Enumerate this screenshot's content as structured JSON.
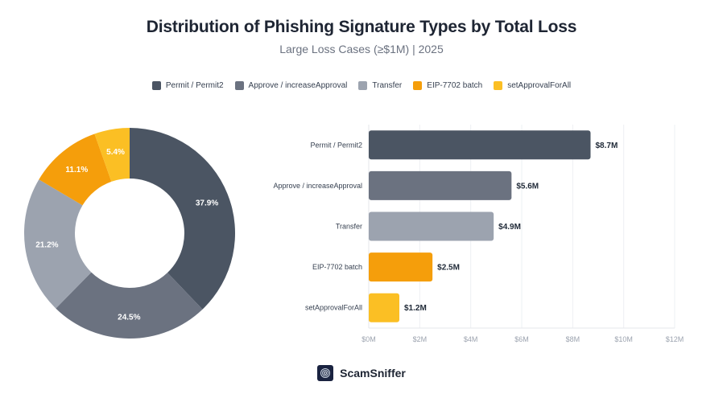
{
  "header": {
    "title": "Distribution of Phishing Signature Types by Total Loss",
    "subtitle": "Large Loss Cases (≥$1M) | 2025"
  },
  "legend": [
    {
      "label": "Permit / Permit2",
      "color": "#4b5563"
    },
    {
      "label": "Approve / increaseApproval",
      "color": "#6b7280"
    },
    {
      "label": "Transfer",
      "color": "#9ca3af"
    },
    {
      "label": "EIP-7702 batch",
      "color": "#f59e0b"
    },
    {
      "label": "setApprovalForAll",
      "color": "#fbbf24"
    }
  ],
  "footer": {
    "brand": "ScamSniffer",
    "logo_icon": "fingerprint-icon"
  },
  "chart_data": [
    {
      "type": "pie",
      "subtype": "donut",
      "title": "Share of Total Loss by Signature Type",
      "categories": [
        "Permit / Permit2",
        "Approve / increaseApproval",
        "Transfer",
        "EIP-7702 batch",
        "setApprovalForAll"
      ],
      "values": [
        37.9,
        24.5,
        21.2,
        11.1,
        5.4
      ],
      "labels": [
        "37.9%",
        "24.5%",
        "21.2%",
        "11.1%",
        "5.4%"
      ],
      "colors": [
        "#4b5563",
        "#6b7280",
        "#9ca3af",
        "#f59e0b",
        "#fbbf24"
      ],
      "start_angle": "12 o'clock, clockwise"
    },
    {
      "type": "bar",
      "orientation": "horizontal",
      "categories": [
        "Permit / Permit2",
        "Approve / increaseApproval",
        "Transfer",
        "EIP-7702 batch",
        "setApprovalForAll"
      ],
      "values": [
        8.7,
        5.6,
        4.9,
        2.5,
        1.2
      ],
      "value_labels": [
        "$8.7M",
        "$5.6M",
        "$4.9M",
        "$2.5M",
        "$1.2M"
      ],
      "colors": [
        "#4b5563",
        "#6b7280",
        "#9ca3af",
        "#f59e0b",
        "#fbbf24"
      ],
      "xlabel": "",
      "ylabel": "",
      "xlim": [
        0,
        12
      ],
      "x_ticks": [
        "$0M",
        "$2M",
        "$4M",
        "$6M",
        "$8M",
        "$10M",
        "$12M"
      ],
      "x_tick_values": [
        0,
        2,
        4,
        6,
        8,
        10,
        12
      ],
      "grid": "vertical"
    }
  ]
}
